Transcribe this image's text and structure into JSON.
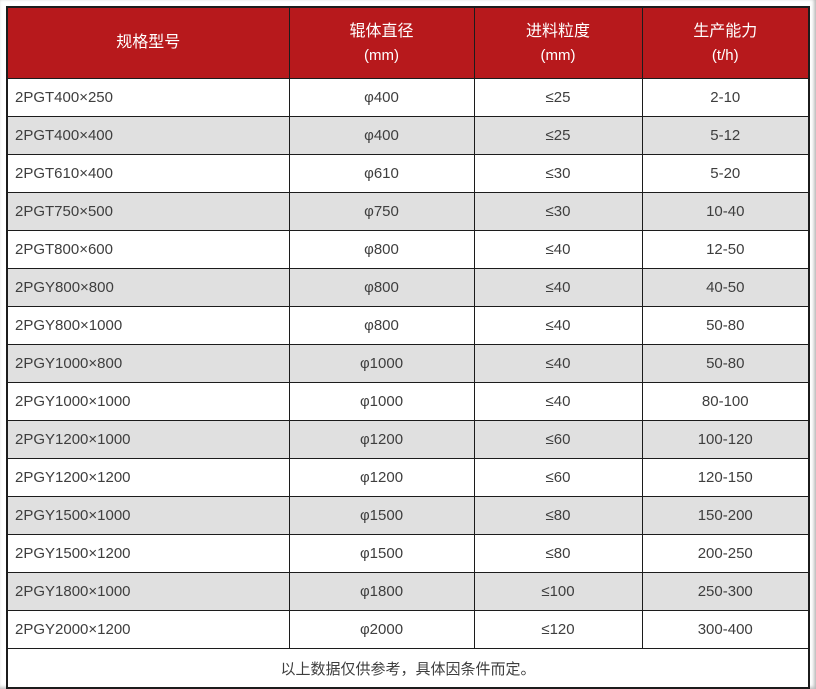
{
  "colors": {
    "header_bg": "#b7191c",
    "header_text": "#ffffff",
    "row_bg": "#ffffff",
    "row_alt_bg": "#e0e0e0",
    "border": "#1c1c1c",
    "cell_text": "#3e3e3e"
  },
  "chart_data": {
    "type": "table",
    "columns": [
      {
        "title": "规格型号",
        "unit": ""
      },
      {
        "title": "辊体直径",
        "unit": "(mm)"
      },
      {
        "title": "进料粒度",
        "unit": "(mm)"
      },
      {
        "title": "生产能力",
        "unit": "(t/h)"
      }
    ],
    "rows": [
      [
        "2PGT400×250",
        "φ400",
        "≤25",
        "2-10"
      ],
      [
        "2PGT400×400",
        "φ400",
        "≤25",
        "5-12"
      ],
      [
        "2PGT610×400",
        "φ610",
        "≤30",
        "5-20"
      ],
      [
        "2PGT750×500",
        "φ750",
        "≤30",
        "10-40"
      ],
      [
        "2PGT800×600",
        "φ800",
        "≤40",
        "12-50"
      ],
      [
        "2PGY800×800",
        "φ800",
        "≤40",
        "40-50"
      ],
      [
        "2PGY800×1000",
        "φ800",
        "≤40",
        "50-80"
      ],
      [
        "2PGY1000×800",
        "φ1000",
        "≤40",
        "50-80"
      ],
      [
        "2PGY1000×1000",
        "φ1000",
        "≤40",
        "80-100"
      ],
      [
        "2PGY1200×1000",
        "φ1200",
        "≤60",
        "100-120"
      ],
      [
        "2PGY1200×1200",
        "φ1200",
        "≤60",
        "120-150"
      ],
      [
        "2PGY1500×1000",
        "φ1500",
        "≤80",
        "150-200"
      ],
      [
        "2PGY1500×1200",
        "φ1500",
        "≤80",
        "200-250"
      ],
      [
        "2PGY1800×1000",
        "φ1800",
        "≤100",
        "250-300"
      ],
      [
        "2PGY2000×1200",
        "φ2000",
        "≤120",
        "300-400"
      ]
    ],
    "footnote": "以上数据仅供参考，具体因条件而定。"
  }
}
